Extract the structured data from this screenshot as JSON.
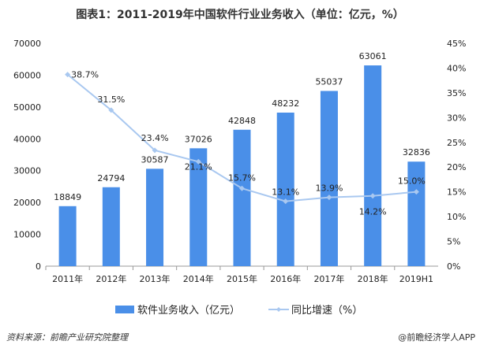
{
  "title": "图表1：2011-2019年中国软件行业业务收入（单位：亿元，%）",
  "source": "资料来源：前瞻产业研究院整理",
  "brand": "@前瞻经济学人APP",
  "chart_data": {
    "type": "bar",
    "categories": [
      "2011年",
      "2012年",
      "2013年",
      "2014年",
      "2015年",
      "2016年",
      "2017年",
      "2018年",
      "2019H1"
    ],
    "series": [
      {
        "name": "软件业务收入（亿元）",
        "type": "bar",
        "axis": "left",
        "color": "#4a8fe8",
        "values": [
          18849,
          24794,
          30587,
          37026,
          42848,
          48232,
          55037,
          63061,
          32836
        ],
        "labels": [
          "18849",
          "24794",
          "30587",
          "37026",
          "42848",
          "48232",
          "55037",
          "63061",
          "32836"
        ]
      },
      {
        "name": "同比增速（%）",
        "type": "line",
        "axis": "right",
        "color": "#a9c8f0",
        "values": [
          38.7,
          31.5,
          23.4,
          21.1,
          15.7,
          13.1,
          13.9,
          14.2,
          15.0
        ],
        "labels": [
          "38.7%",
          "31.5%",
          "23.4%",
          "21.1%",
          "15.7%",
          "13.1%",
          "13.9%",
          "14.2%",
          "15.0%"
        ]
      }
    ],
    "ylim_left": [
      0,
      70000
    ],
    "yticks_left": [
      "0",
      "10000",
      "20000",
      "30000",
      "40000",
      "50000",
      "60000",
      "70000"
    ],
    "ylim_right": [
      0,
      45
    ],
    "yticks_right": [
      "0%",
      "5%",
      "10%",
      "15%",
      "20%",
      "25%",
      "30%",
      "35%",
      "40%",
      "45%"
    ],
    "grid": false,
    "legend": "bottom"
  }
}
